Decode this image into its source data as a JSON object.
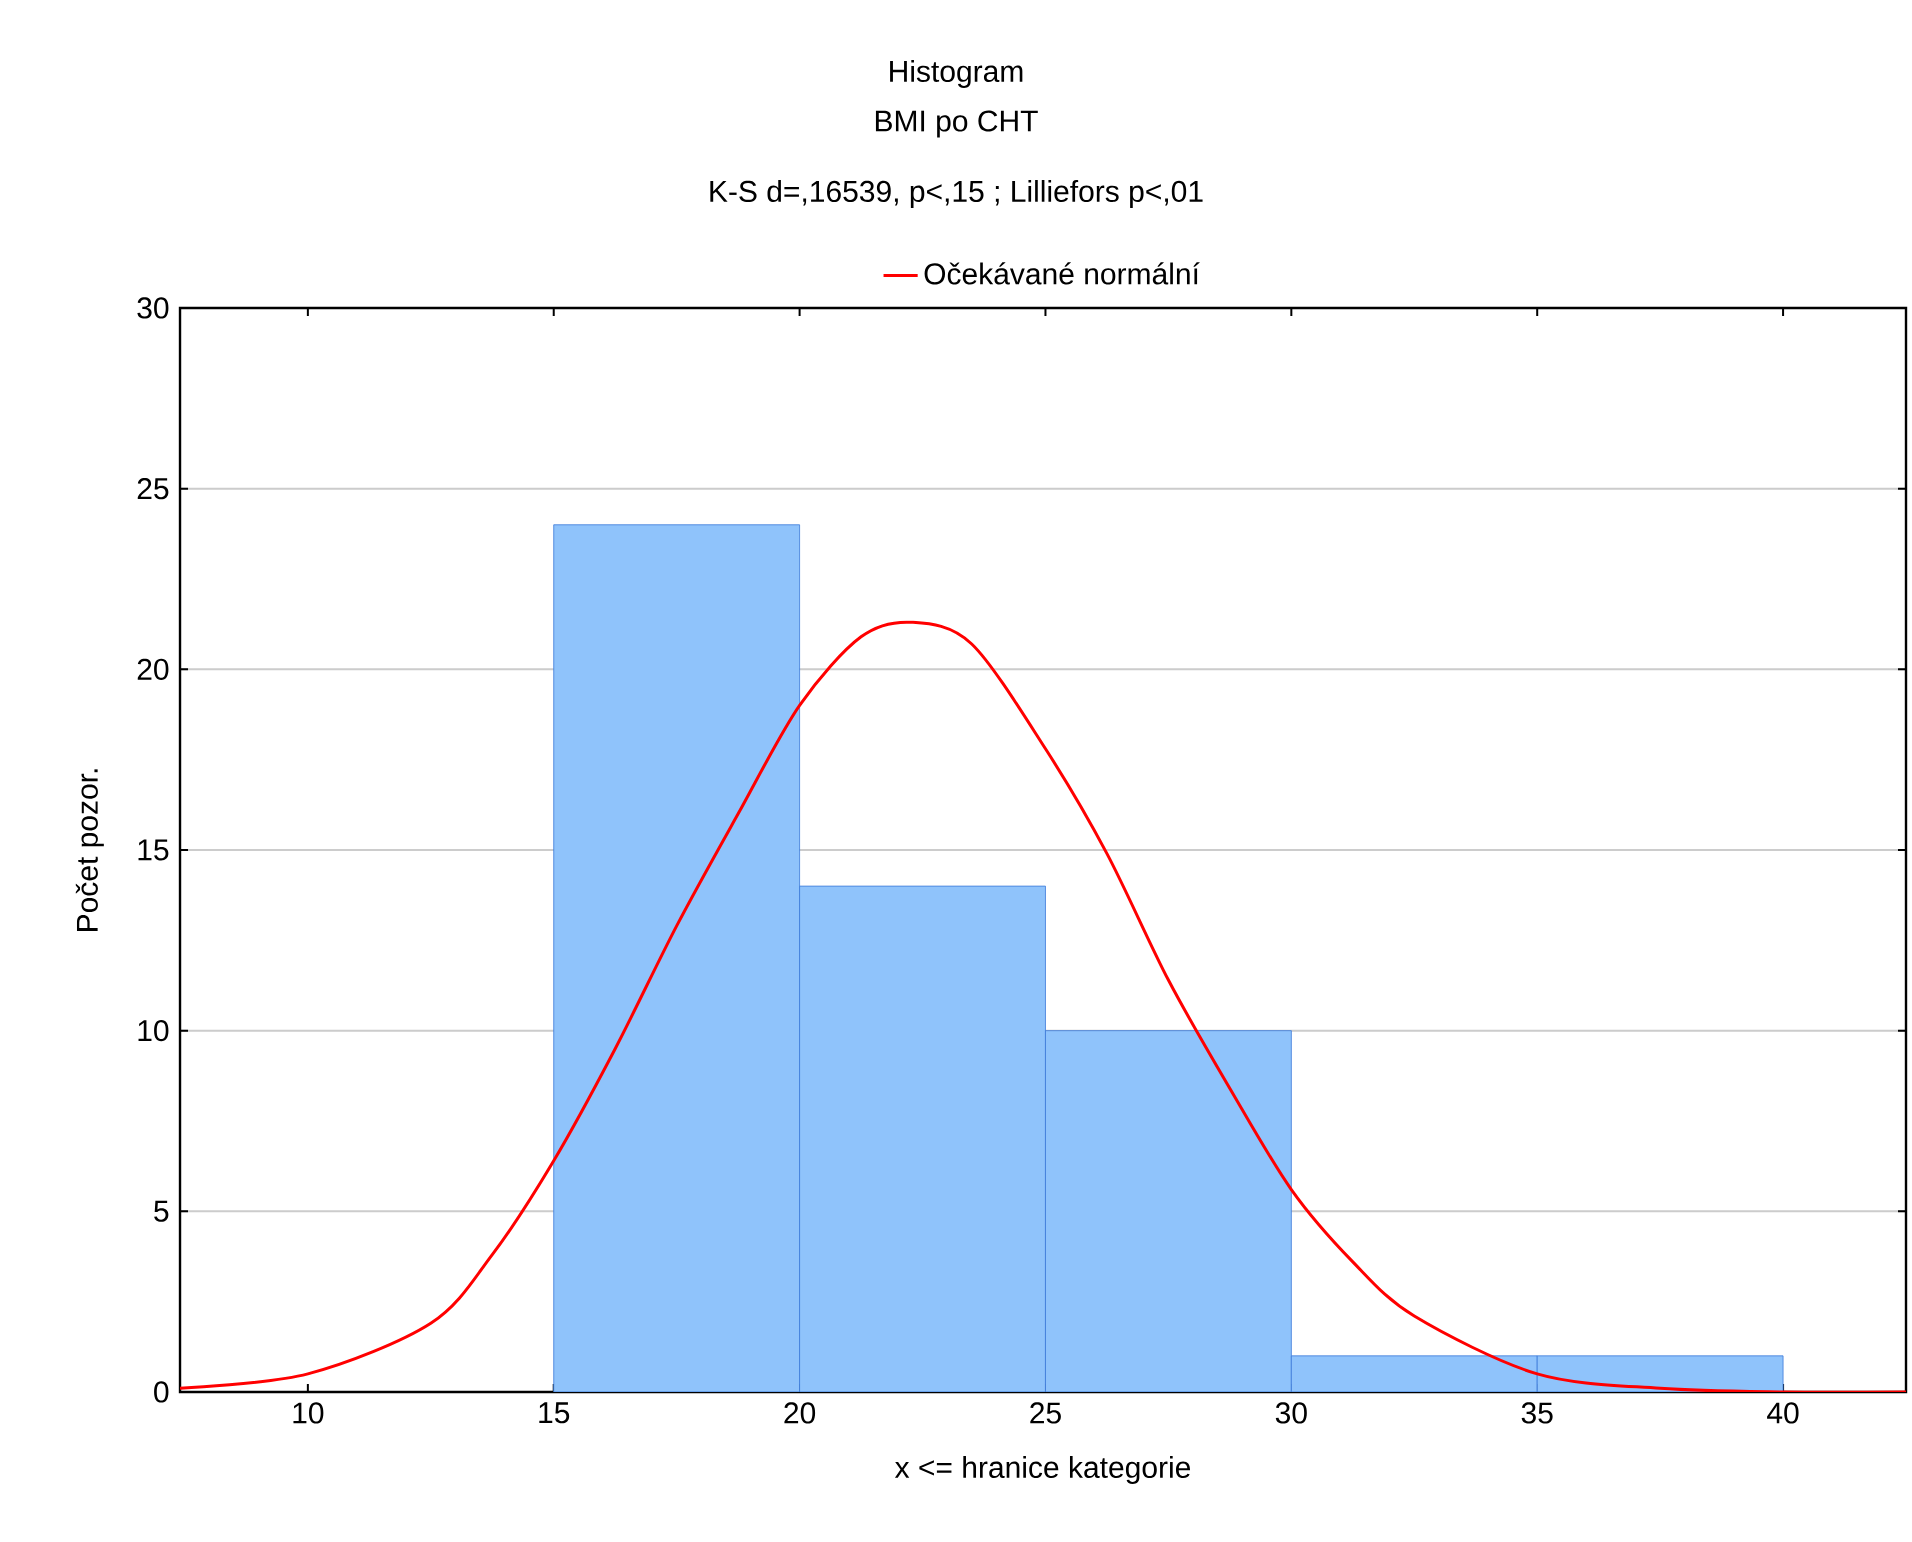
{
  "chart_data": {
    "type": "histogram",
    "title": "Histogram",
    "subtitle": "BMI po CHT",
    "annotations": [
      "K-S d=,16539, p<,15 ; Lilliefors p<,01"
    ],
    "xlabel": "x <= hranice kategorie",
    "ylabel": "Počet pozor.",
    "bins": [
      15,
      20,
      25,
      30,
      35,
      40
    ],
    "values": [
      24,
      14,
      10,
      1,
      1
    ],
    "color": "#8fc3fb",
    "series": [
      {
        "type": "line",
        "name": "Očekávané normální",
        "color": "#ff0000",
        "x": [
          7.4,
          10,
          12.5,
          13.75,
          15,
          16.25,
          17.5,
          18.75,
          20,
          21.25,
          22.3,
          23.5,
          25,
          26.25,
          27.5,
          28.75,
          30,
          31.25,
          32.5,
          35,
          37.5,
          40,
          42.5
        ],
        "values": [
          0.1,
          0.5,
          1.9,
          3.8,
          6.4,
          9.5,
          12.9,
          16.0,
          19.0,
          20.9,
          21.3,
          20.7,
          17.8,
          14.9,
          11.4,
          8.4,
          5.6,
          3.6,
          2.1,
          0.5,
          0.1,
          0,
          0
        ]
      }
    ],
    "xlim": [
      7.4,
      42.5
    ],
    "xticks": [
      10,
      15,
      20,
      25,
      30,
      35,
      40
    ],
    "ylim": [
      0,
      30
    ],
    "yticks": [
      0,
      5,
      10,
      15,
      20,
      25,
      30
    ],
    "grid": "y",
    "legend": "top"
  }
}
